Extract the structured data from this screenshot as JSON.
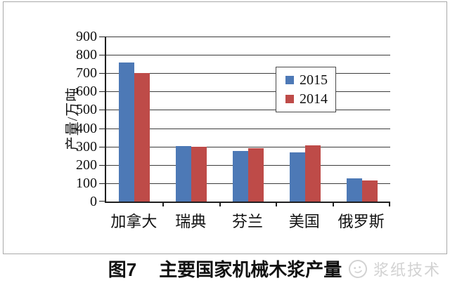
{
  "chart_data": {
    "type": "bar",
    "title": "图7 主要国家机械木浆产量",
    "categories": [
      "加拿大",
      "瑞典",
      "芬兰",
      "美国",
      "俄罗斯"
    ],
    "series": [
      {
        "name": "2015",
        "color": "#4D79B6",
        "values": [
          760,
          303,
          277,
          268,
          125
        ]
      },
      {
        "name": "2014",
        "color": "#BE4B48",
        "values": [
          700,
          297,
          291,
          306,
          115
        ]
      }
    ],
    "xlabel": "",
    "ylabel": "产量/万吨",
    "ylim": [
      0,
      900
    ],
    "yticks": [
      0,
      100,
      200,
      300,
      400,
      500,
      600,
      700,
      800,
      900
    ],
    "grid": "horizontal",
    "legend_position": "inside-top-right",
    "units": "万吨"
  },
  "caption": {
    "prefix": "图7",
    "title": "主要国家机械木浆产量"
  },
  "watermark": {
    "text": "浆纸技术"
  }
}
